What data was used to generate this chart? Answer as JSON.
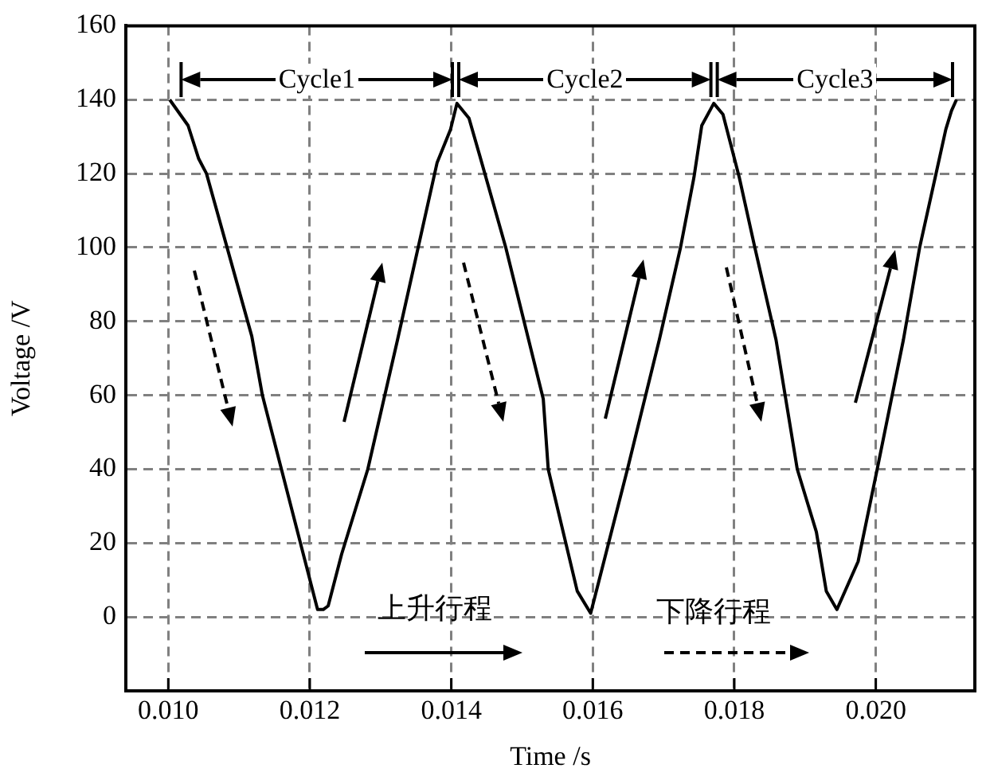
{
  "chart_data": {
    "type": "line",
    "xlabel": "Time /s",
    "ylabel": "Voltage /V",
    "xlim": [
      0.0094,
      0.0214
    ],
    "xticks": [
      {
        "value": 0.01,
        "label": "0.010"
      },
      {
        "value": 0.012,
        "label": "0.012"
      },
      {
        "value": 0.014,
        "label": "0.014"
      },
      {
        "value": 0.016,
        "label": "0.016"
      },
      {
        "value": 0.018,
        "label": "0.018"
      },
      {
        "value": 0.02,
        "label": "0.020"
      }
    ],
    "ylim": [
      -20,
      160
    ],
    "yticks": [
      0,
      20,
      40,
      60,
      80,
      100,
      120,
      140,
      160
    ],
    "grid": true,
    "line_style": "solid",
    "marker": "none",
    "series": [
      {
        "color": "#000000",
        "x": [
          0.01002,
          0.01028,
          0.01043,
          0.01054,
          0.01118,
          0.01133,
          0.01211,
          0.01219,
          0.01226,
          0.01245,
          0.01282,
          0.01324,
          0.0138,
          0.01399,
          0.01408,
          0.01425,
          0.0144,
          0.01477,
          0.0153,
          0.01537,
          0.01578,
          0.01597,
          0.01649,
          0.01694,
          0.01724,
          0.01743,
          0.01754,
          0.01771,
          0.01784,
          0.01807,
          0.01829,
          0.01859,
          0.01889,
          0.01916,
          0.0193,
          0.01945,
          0.01975,
          0.02002,
          0.02039,
          0.02062,
          0.02084,
          0.02099,
          0.02107,
          0.02114
        ],
        "values": [
          140,
          133,
          124,
          120,
          76,
          60,
          2,
          2,
          3,
          17,
          40,
          75,
          123,
          132,
          139,
          135,
          125,
          100,
          59,
          40,
          7,
          1,
          40,
          75,
          100,
          119,
          133,
          139,
          136,
          119,
          100,
          75,
          40,
          23,
          7,
          2,
          15,
          40,
          75,
          100,
          119,
          132,
          137,
          140
        ]
      }
    ],
    "annotations": [
      "Cycle1",
      "Cycle2",
      "Cycle3",
      "上升行程",
      "下降行程"
    ]
  }
}
